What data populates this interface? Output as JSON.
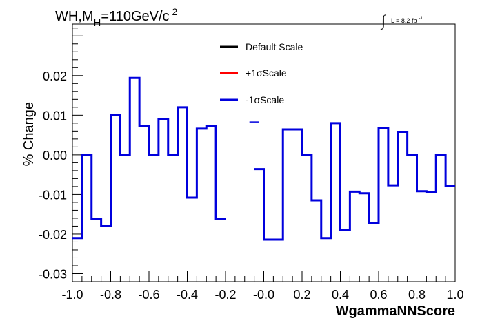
{
  "chart_data": {
    "type": "line",
    "title": {
      "main": "WH,M",
      "sub": "H",
      "rest": "=110GeV/c",
      "sup": "2"
    },
    "lumi": {
      "integral": "∫",
      "text": "L = 8.2 fb",
      "sup": "-1"
    },
    "xlabel": "WgammaNNScore",
    "ylabel": "% Change",
    "xlim": [
      -1.0,
      1.0
    ],
    "ylim": [
      -0.032,
      0.033
    ],
    "xticks": [
      "-1.0",
      "-0.8",
      "-0.6",
      "-0.4",
      "-0.2",
      "-0.0",
      "0.2",
      "0.4",
      "0.6",
      "0.8",
      "1.0"
    ],
    "xtick_values": [
      -1.0,
      -0.8,
      -0.6,
      -0.4,
      -0.2,
      0.0,
      0.2,
      0.4,
      0.6,
      0.8,
      1.0
    ],
    "yticks": [
      "-0.03",
      "-0.02",
      "-0.01",
      "0.00",
      "0.01",
      "0.02"
    ],
    "ytick_values": [
      -0.03,
      -0.02,
      -0.01,
      0.0,
      0.01,
      0.02
    ],
    "legend": [
      {
        "label": "Default Scale",
        "color": "#000000"
      },
      {
        "label": "+1σScale",
        "color": "#ff0000"
      },
      {
        "label": "-1σScale",
        "color": "#0000dd"
      }
    ],
    "series": [
      {
        "name": "-1σScale",
        "color": "#0000dd",
        "bin_edges": [
          -1.0,
          -0.95,
          -0.9,
          -0.85,
          -0.8,
          -0.75,
          -0.7,
          -0.65,
          -0.6,
          -0.55,
          -0.5,
          -0.45,
          -0.4,
          -0.35,
          -0.3,
          -0.25,
          -0.2,
          -0.15,
          -0.1,
          -0.05,
          0.0,
          0.05,
          0.1,
          0.15,
          0.2,
          0.25,
          0.3,
          0.35,
          0.4,
          0.45,
          0.5,
          0.55,
          0.6,
          0.65,
          0.7,
          0.75,
          0.8,
          0.85,
          0.9,
          0.95,
          1.0
        ],
        "values": [
          -0.021,
          0.0,
          -0.0162,
          -0.018,
          0.01,
          0.0,
          0.0194,
          0.0072,
          0.0,
          0.009,
          0.0,
          0.012,
          -0.0108,
          0.0066,
          0.0072,
          -0.0162,
          null,
          null,
          null,
          -0.0036,
          -0.0214,
          -0.0214,
          0.0064,
          0.0064,
          0.0,
          -0.0115,
          -0.021,
          0.008,
          -0.019,
          -0.0093,
          -0.0097,
          -0.0172,
          0.0068,
          -0.0077,
          0.0058,
          0.0,
          -0.0092,
          -0.0095,
          0.0,
          -0.0078
        ]
      }
    ],
    "markers": [
      {
        "x0": -0.075,
        "x1": -0.025,
        "y": 0.0083,
        "color": "#0000dd"
      }
    ]
  }
}
